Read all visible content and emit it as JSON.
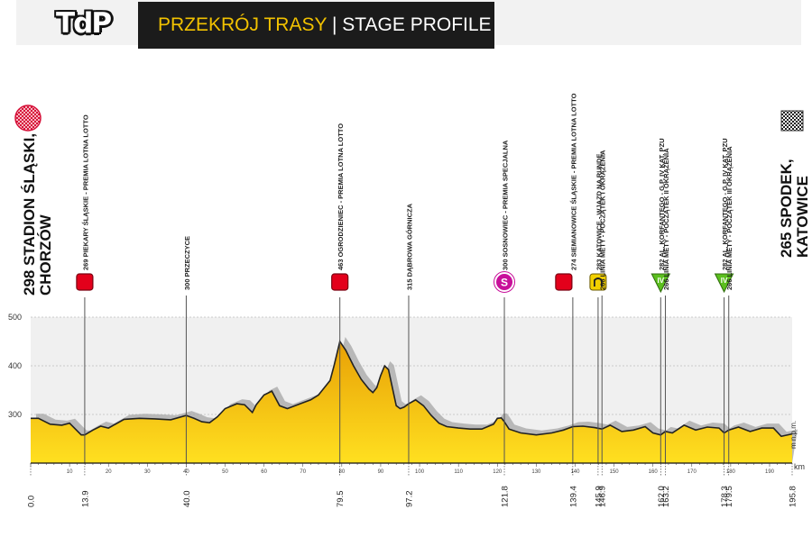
{
  "header": {
    "logo_text": "TdP",
    "title_primary": "PRZEKRÓJ TRASY",
    "title_separator": " | ",
    "title_secondary": "STAGE PROFILE"
  },
  "start": {
    "label": "298 STADION ŚLĄSKI, CHORZÓW",
    "line1": "298 STADION ŚLĄSKI,",
    "line2": "CHORZÓW",
    "icon": "start-flag-icon"
  },
  "finish": {
    "label": "265 SPODEK, KATOWICE",
    "line1": "265 SPODEK,",
    "line2": "KATOWICE",
    "icon": "checkered-flag-icon"
  },
  "colors": {
    "profile_top": "#e8a006",
    "profile_bottom": "#ffe020",
    "peak_tint": "#ff8a00",
    "sprint": "#e3001b",
    "special": "#c8109a",
    "kom": "#5bbf1e",
    "cobbles": "#f2d000",
    "shadow": "#aaaaaa"
  },
  "chart_data": {
    "type": "area",
    "title": "PRZEKRÓJ TRASY | STAGE PROFILE",
    "xlabel": "km",
    "ylabel": "m n.p.m.",
    "xlim": [
      0,
      195.8
    ],
    "ylim": [
      200,
      500
    ],
    "y_ticks": [
      300,
      400,
      500
    ],
    "x_ticks": [
      10,
      20,
      30,
      40,
      50,
      60,
      70,
      80,
      90,
      100,
      110,
      120,
      130,
      140,
      150,
      160,
      170,
      180,
      190
    ],
    "x_tick_labels": [
      "10",
      "20",
      "30",
      "40",
      "50",
      "60",
      "70",
      "80",
      "90",
      "100",
      "110",
      "120",
      "130",
      "140",
      "150",
      "160",
      "170",
      "180",
      "190"
    ],
    "grid": true,
    "marker_km": [
      0.0,
      13.9,
      40.0,
      79.5,
      97.2,
      121.8,
      139.4,
      145.9,
      146.9,
      162.0,
      163.2,
      178.3,
      179.5,
      195.8
    ],
    "marker_km_labels": [
      "0.0",
      "13.9",
      "40.0",
      "79.5",
      "97.2",
      "121.8",
      "139.4",
      "145.9",
      "146.9",
      "162.0",
      "163.2",
      "178.3",
      "179.5",
      "195.8"
    ],
    "profile": {
      "x": [
        0,
        2,
        5,
        8,
        10,
        13,
        13.9,
        16,
        18,
        20,
        24,
        28,
        32,
        36,
        40,
        42,
        44,
        46,
        48,
        50,
        53,
        55,
        57,
        58,
        60,
        62,
        64,
        66,
        68,
        70,
        72,
        74,
        76,
        77,
        78,
        79.5,
        81,
        83,
        85,
        87,
        88,
        89,
        90,
        91,
        92,
        93,
        94,
        95,
        96,
        97.2,
        99,
        101,
        103,
        105,
        107,
        110,
        113,
        116,
        119,
        120,
        121,
        121.8,
        123,
        126,
        130,
        134,
        137,
        139.4,
        142,
        145,
        146.9,
        149,
        152,
        155,
        158,
        160,
        162,
        163.2,
        165,
        168,
        171,
        174,
        177,
        178.3,
        179.5,
        182,
        185,
        188,
        191,
        193,
        195.8
      ],
      "y": [
        292,
        292,
        280,
        278,
        282,
        258,
        258,
        268,
        276,
        272,
        290,
        292,
        291,
        289,
        298,
        292,
        285,
        283,
        295,
        312,
        322,
        320,
        304,
        320,
        340,
        348,
        318,
        312,
        318,
        324,
        330,
        340,
        360,
        370,
        400,
        450,
        432,
        400,
        372,
        352,
        345,
        355,
        380,
        400,
        392,
        355,
        318,
        312,
        315,
        322,
        330,
        318,
        298,
        282,
        275,
        272,
        270,
        270,
        280,
        292,
        293,
        285,
        270,
        262,
        258,
        262,
        268,
        275,
        276,
        273,
        270,
        278,
        265,
        268,
        275,
        262,
        258,
        265,
        262,
        278,
        268,
        274,
        272,
        262,
        268,
        274,
        265,
        272,
        272,
        255,
        260
      ]
    },
    "annotations": [
      {
        "km": 13.9,
        "text": "269 PIEKARY ŚLĄSKIE - PREMIA LOTNA LOTTO",
        "type": "sprint"
      },
      {
        "km": 40.0,
        "text": "300 PRZECZYCE",
        "type": "none"
      },
      {
        "km": 79.5,
        "text": "463 OGRODZIENIEC - PREMIA LOTNA LOTTO",
        "type": "sprint"
      },
      {
        "km": 97.2,
        "text": "315 DĄBROWA GÓRNICZA",
        "type": "none"
      },
      {
        "km": 121.8,
        "text": "300 SOSNOWIEC - PREMIA SPECJALNA",
        "type": "special"
      },
      {
        "km": 139.4,
        "text": "274 SIEMIANOWICE ŚLĄSKIE - PREMIA LOTNA LOTTO",
        "type": "sprint"
      },
      {
        "km": 145.9,
        "text": "283 KATOWICE - WJAZD NA RUNDĘ",
        "type": "circuit"
      },
      {
        "km": 146.9,
        "text": "266 LINIA METY - POCZĄTEK I OKRĄŻENIA",
        "type": "none"
      },
      {
        "km": 162.0,
        "text": "282 AL. KORFANTEGO - G.P. IV KAT. PZU",
        "type": "kom"
      },
      {
        "km": 163.2,
        "text": "266 LINIA METY - POCZĄTEK II OKRĄŻENIA",
        "type": "none"
      },
      {
        "km": 178.3,
        "text": "282 AL. KORFANTEGO - G.P. IV KAT. PZU",
        "type": "kom"
      },
      {
        "km": 179.5,
        "text": "266 LINIA METY - POCZĄTEK III OKRĄŻENIA",
        "type": "none"
      }
    ],
    "icons": {
      "special_letter": "S",
      "kom_label": "IV"
    }
  }
}
